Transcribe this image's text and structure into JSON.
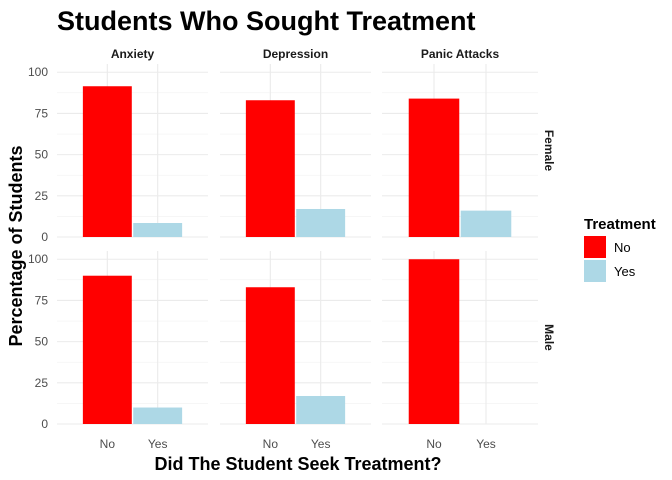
{
  "chart_data": {
    "type": "bar",
    "title": "Students Who Sought Treatment",
    "xlabel": "Did The Student Seek Treatment?",
    "ylabel": "Percentage of Students",
    "categories": [
      "No",
      "Yes"
    ],
    "ylim": [
      0,
      105
    ],
    "yticks": [
      0,
      25,
      50,
      75,
      100
    ],
    "grid": true,
    "legend": {
      "title": "Treatment",
      "placement": "right",
      "entries": [
        {
          "label": "No",
          "color": "#ff0000"
        },
        {
          "label": "Yes",
          "color": "#add8e6"
        }
      ]
    },
    "facet_columns": [
      "Anxiety",
      "Depression",
      "Panic Attacks"
    ],
    "facet_rows": [
      "Female",
      "Male"
    ],
    "panels": [
      {
        "row": "Female",
        "column": "Anxiety",
        "values": [
          91.5,
          8.5
        ]
      },
      {
        "row": "Female",
        "column": "Depression",
        "values": [
          83,
          17
        ]
      },
      {
        "row": "Female",
        "column": "Panic Attacks",
        "values": [
          84,
          16
        ]
      },
      {
        "row": "Male",
        "column": "Anxiety",
        "values": [
          90,
          10
        ]
      },
      {
        "row": "Male",
        "column": "Depression",
        "values": [
          83,
          17
        ]
      },
      {
        "row": "Male",
        "column": "Panic Attacks",
        "values": [
          100,
          0
        ]
      }
    ]
  }
}
